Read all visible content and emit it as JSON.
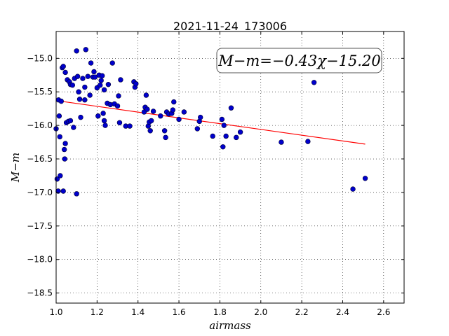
{
  "chart_data": {
    "type": "scatter",
    "title": "2021-11-24_173006",
    "xlabel": "airmass",
    "ylabel": "M−m",
    "xlim": [
      1.0,
      2.7
    ],
    "ylim": [
      -18.65,
      -14.6
    ],
    "y_inverted": true,
    "grid": true,
    "x_ticks": [
      "1.0",
      "1.2",
      "1.4",
      "1.6",
      "1.8",
      "2.0",
      "2.2",
      "2.4",
      "2.6"
    ],
    "y_ticks": [
      "−15.0",
      "−15.5",
      "−16.0",
      "−16.5",
      "−17.0",
      "−17.5",
      "−18.0",
      "−18.5"
    ],
    "annotation": "M−m=−0.43χ−15.20",
    "colors": {
      "points": "#0000cc",
      "fit": "#ff0000"
    },
    "fit": {
      "slope": -0.43,
      "intercept": -15.2,
      "x_range": [
        1.0,
        2.51
      ]
    },
    "points": [
      [
        1.0,
        -16.05
      ],
      [
        1.005,
        -16.8
      ],
      [
        1.01,
        -16.98
      ],
      [
        1.012,
        -15.62
      ],
      [
        1.015,
        -15.86
      ],
      [
        1.018,
        -16.17
      ],
      [
        1.02,
        -16.75
      ],
      [
        1.025,
        -15.64
      ],
      [
        1.03,
        -15.14
      ],
      [
        1.035,
        -15.12
      ],
      [
        1.035,
        -16.98
      ],
      [
        1.04,
        -16.36
      ],
      [
        1.042,
        -16.5
      ],
      [
        1.045,
        -16.27
      ],
      [
        1.045,
        -15.21
      ],
      [
        1.05,
        -15.96
      ],
      [
        1.055,
        -15.32
      ],
      [
        1.06,
        -15.94
      ],
      [
        1.065,
        -15.35
      ],
      [
        1.07,
        -15.39
      ],
      [
        1.07,
        -15.93
      ],
      [
        1.08,
        -15.4
      ],
      [
        1.085,
        -16.03
      ],
      [
        1.09,
        -15.3
      ],
      [
        1.1,
        -14.89
      ],
      [
        1.1,
        -17.02
      ],
      [
        1.105,
        -15.27
      ],
      [
        1.11,
        -15.5
      ],
      [
        1.115,
        -15.61
      ],
      [
        1.12,
        -15.88
      ],
      [
        1.13,
        -15.3
      ],
      [
        1.14,
        -15.43
      ],
      [
        1.14,
        -15.62
      ],
      [
        1.145,
        -14.87
      ],
      [
        1.155,
        -15.27
      ],
      [
        1.165,
        -15.55
      ],
      [
        1.17,
        -15.07
      ],
      [
        1.18,
        -15.28
      ],
      [
        1.185,
        -15.2
      ],
      [
        1.19,
        -15.28
      ],
      [
        1.2,
        -15.44
      ],
      [
        1.205,
        -15.86
      ],
      [
        1.21,
        -15.25
      ],
      [
        1.215,
        -15.4
      ],
      [
        1.22,
        -15.33
      ],
      [
        1.225,
        -15.26
      ],
      [
        1.23,
        -15.82
      ],
      [
        1.235,
        -15.93
      ],
      [
        1.235,
        -15.47
      ],
      [
        1.24,
        -16.0
      ],
      [
        1.25,
        -15.67
      ],
      [
        1.255,
        -15.39
      ],
      [
        1.265,
        -15.69
      ],
      [
        1.275,
        -15.07
      ],
      [
        1.285,
        -15.68
      ],
      [
        1.3,
        -15.71
      ],
      [
        1.305,
        -15.56
      ],
      [
        1.31,
        -15.96
      ],
      [
        1.315,
        -15.32
      ],
      [
        1.34,
        -16.01
      ],
      [
        1.36,
        -16.01
      ],
      [
        1.38,
        -15.35
      ],
      [
        1.385,
        -15.43
      ],
      [
        1.39,
        -15.38
      ],
      [
        1.43,
        -15.8
      ],
      [
        1.435,
        -15.73
      ],
      [
        1.44,
        -15.55
      ],
      [
        1.445,
        -15.76
      ],
      [
        1.45,
        -16.01
      ],
      [
        1.455,
        -15.95
      ],
      [
        1.46,
        -16.08
      ],
      [
        1.465,
        -15.93
      ],
      [
        1.475,
        -15.79
      ],
      [
        1.51,
        -15.86
      ],
      [
        1.53,
        -16.08
      ],
      [
        1.535,
        -16.18
      ],
      [
        1.54,
        -15.8
      ],
      [
        1.55,
        -15.83
      ],
      [
        1.565,
        -15.82
      ],
      [
        1.57,
        -15.77
      ],
      [
        1.575,
        -15.65
      ],
      [
        1.6,
        -15.91
      ],
      [
        1.625,
        -15.8
      ],
      [
        1.69,
        -16.05
      ],
      [
        1.7,
        -15.94
      ],
      [
        1.705,
        -15.88
      ],
      [
        1.765,
        -16.16
      ],
      [
        1.81,
        -15.91
      ],
      [
        1.815,
        -16.32
      ],
      [
        1.82,
        -16.0
      ],
      [
        1.83,
        -16.16
      ],
      [
        1.855,
        -15.74
      ],
      [
        1.88,
        -16.18
      ],
      [
        1.9,
        -16.1
      ],
      [
        2.1,
        -16.25
      ],
      [
        2.23,
        -16.24
      ],
      [
        2.26,
        -15.36
      ],
      [
        2.45,
        -16.95
      ],
      [
        2.51,
        -16.79
      ]
    ]
  }
}
